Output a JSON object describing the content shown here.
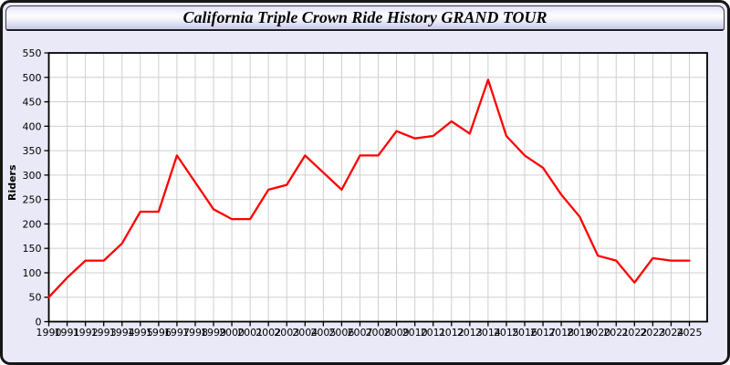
{
  "window": {
    "title": "California Triple Crown Ride History GRAND TOUR"
  },
  "chart_data": {
    "type": "line",
    "title": "California Triple Crown Ride History GRAND TOUR",
    "xlabel": "",
    "ylabel": "Riders",
    "x": [
      1990,
      1991,
      1992,
      1993,
      1994,
      1995,
      1996,
      1997,
      1998,
      1999,
      2000,
      2001,
      2002,
      2003,
      2004,
      2005,
      2006,
      2007,
      2008,
      2009,
      2010,
      2011,
      2012,
      2013,
      2014,
      2015,
      2016,
      2017,
      2018,
      2019,
      2020,
      2021,
      2022,
      2023,
      2024,
      2025
    ],
    "series": [
      {
        "name": "Riders",
        "color": "#ff0000",
        "values": [
          50,
          90,
          125,
          125,
          160,
          225,
          225,
          340,
          285,
          230,
          210,
          210,
          270,
          280,
          340,
          305,
          270,
          340,
          340,
          390,
          375,
          380,
          410,
          385,
          495,
          380,
          340,
          315,
          260,
          215,
          135,
          125,
          80,
          130,
          125,
          125
        ]
      }
    ],
    "ylim": [
      0,
      550
    ],
    "ytick_step": 50,
    "xtick_step": 1,
    "grid": true,
    "legend_position": "none",
    "plot_background": "#ffffff",
    "page_background": "#e9e9f8",
    "grid_color": "#cfcfcf",
    "axis_color": "#000000",
    "tick_label_color": "#000000"
  }
}
